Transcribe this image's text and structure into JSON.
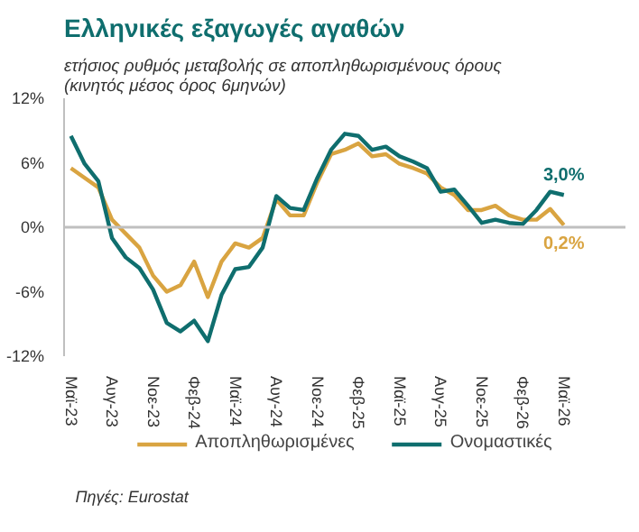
{
  "chart_data": {
    "type": "line",
    "title": "Ελληνικές εξαγωγές αγαθών",
    "subtitle": "ετήσιος ρυθμός μεταβολής σε αποπληθωρισμένους όρους\n(κινητός μέσος όρος 6μηνών)",
    "annotations": [
      "Πηγές: Eurostat"
    ],
    "categories": [
      "Μαϊ-23",
      null,
      null,
      "Αυγ-23",
      null,
      null,
      "Νοε-23",
      null,
      null,
      "Φεβ-24",
      null,
      null,
      "Μαϊ-24",
      null,
      null,
      "Αυγ-24",
      null,
      null,
      "Νοε-24",
      null,
      null,
      "Φεβ-25",
      null,
      null,
      "Μαϊ-25",
      null,
      null,
      "Αυγ-25",
      null,
      null,
      "Νοε-25",
      null,
      null,
      "Φεβ-26",
      null,
      null,
      "Μαϊ-26"
    ],
    "series": [
      {
        "name": "Αποπληθωρισμένες",
        "color": "#d9a441",
        "values": [
          5.5,
          4.6,
          3.7,
          0.7,
          -0.6,
          -1.9,
          -4.5,
          -6,
          -5.4,
          -3.2,
          -6.5,
          -3.2,
          -1.5,
          -1.9,
          -1,
          2.6,
          1.1,
          1.1,
          4.2,
          6.8,
          7.2,
          7.8,
          6.6,
          6.8,
          5.9,
          5.5,
          5.0,
          3.7,
          3.0,
          1.6,
          1.6,
          2.0,
          1.1,
          0.7,
          0.7,
          1.7,
          0.2
        ],
        "value_labels": [
          null,
          null,
          null,
          null,
          null,
          null,
          null,
          null,
          null,
          null,
          null,
          null,
          null,
          null,
          null,
          null,
          null,
          null,
          null,
          null,
          null,
          null,
          null,
          null,
          null,
          null,
          null,
          null,
          null,
          null,
          null,
          null,
          null,
          null,
          null,
          null,
          "0,2%"
        ]
      },
      {
        "name": "Ονομαστικές",
        "color": "#0f6e6e",
        "values": [
          8.5,
          5.9,
          4.3,
          -1,
          -2.8,
          -3.8,
          -5.8,
          -8.9,
          -9.7,
          -8.7,
          -10.6,
          -6.3,
          -3.9,
          -3.7,
          -1.9,
          2.9,
          1.8,
          1.6,
          4.6,
          7.2,
          8.7,
          8.5,
          7.2,
          7.5,
          6.6,
          6.1,
          5.5,
          3.3,
          3.5,
          2.0,
          0.4,
          0.7,
          0.4,
          0.3,
          1.6,
          3.3,
          3.0
        ],
        "value_labels": [
          null,
          null,
          null,
          null,
          null,
          null,
          null,
          null,
          null,
          null,
          null,
          null,
          null,
          null,
          null,
          null,
          null,
          null,
          null,
          null,
          null,
          null,
          null,
          null,
          null,
          null,
          null,
          null,
          null,
          null,
          null,
          null,
          null,
          null,
          null,
          null,
          "3,0%"
        ]
      }
    ],
    "ylim": [
      -12,
      12
    ],
    "yticks": [
      {
        "value": -12,
        "label": "-12%"
      },
      {
        "value": -6,
        "label": "-6%"
      },
      {
        "value": 0,
        "label": "0%"
      },
      {
        "value": 6,
        "label": "6%"
      },
      {
        "value": 12,
        "label": "12%"
      }
    ],
    "ref_lines": [
      {
        "axis": "y",
        "value": 0,
        "color": "#bfbfbf"
      }
    ],
    "grid": false,
    "legend": "bottom",
    "line_style": "solid"
  }
}
